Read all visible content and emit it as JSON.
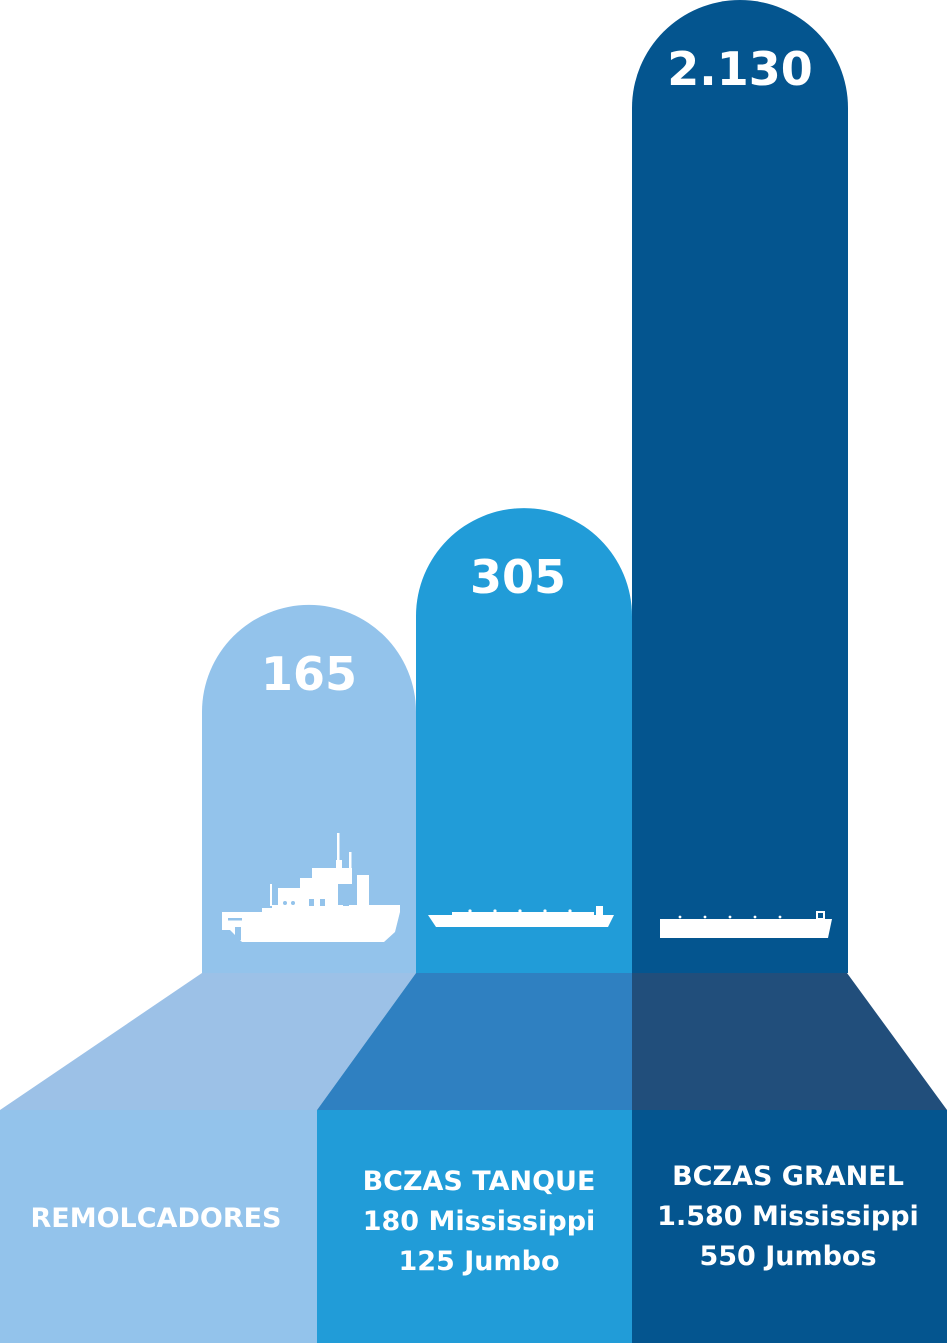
{
  "chart_data": {
    "type": "bar",
    "categories": [
      "REMOLCADORES",
      "BCZAS TANQUE",
      "BCZAS GRANEL"
    ],
    "values": [
      165,
      305,
      2130
    ],
    "value_labels": [
      "165",
      "305",
      "2.130"
    ],
    "category_details": [
      [],
      [
        "180 Mississippi",
        "125 Jumbo"
      ],
      [
        "1.580 Mississippi",
        "550 Jumbos"
      ]
    ],
    "icons": [
      "tugboat-icon",
      "tank-barge-icon",
      "bulk-barge-icon"
    ],
    "colors": {
      "bar": [
        "#93c3eb",
        "#219cd8",
        "#04558f"
      ],
      "ramp": [
        "#9cc1e7",
        "#2f80c1",
        "#214e7b"
      ],
      "base": [
        "#93c3eb",
        "#219cd8",
        "#04558f"
      ],
      "icon": "#ffffff",
      "text": "#ffffff"
    },
    "title": "",
    "xlabel": "",
    "ylabel": "",
    "grid": false
  }
}
